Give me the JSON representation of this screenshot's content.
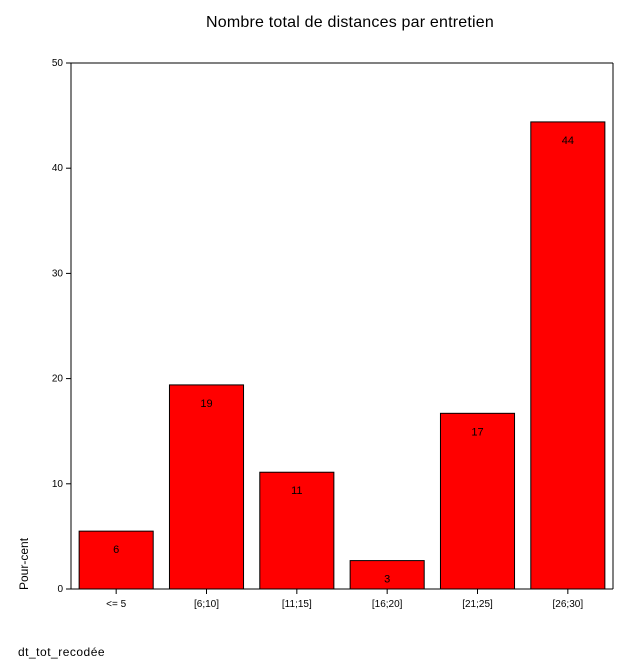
{
  "chart_data": {
    "type": "bar",
    "title": "Nombre total de distances par entretien",
    "xlabel": "dt_tot_recodée",
    "ylabel": "Pour-cent",
    "categories": [
      "<= 5",
      "[6;10]",
      "[11;15]",
      "[16;20]",
      "[21;25]",
      "[26;30]"
    ],
    "values": [
      5.5,
      19.4,
      11.1,
      2.7,
      16.7,
      44.4
    ],
    "data_labels": [
      "6",
      "19",
      "11",
      "3",
      "17",
      "44"
    ],
    "ylim": [
      0,
      50
    ],
    "yticks": [
      0,
      10,
      20,
      30,
      40,
      50
    ],
    "bar_color": "#ff0000",
    "grid": false,
    "legend": false
  }
}
